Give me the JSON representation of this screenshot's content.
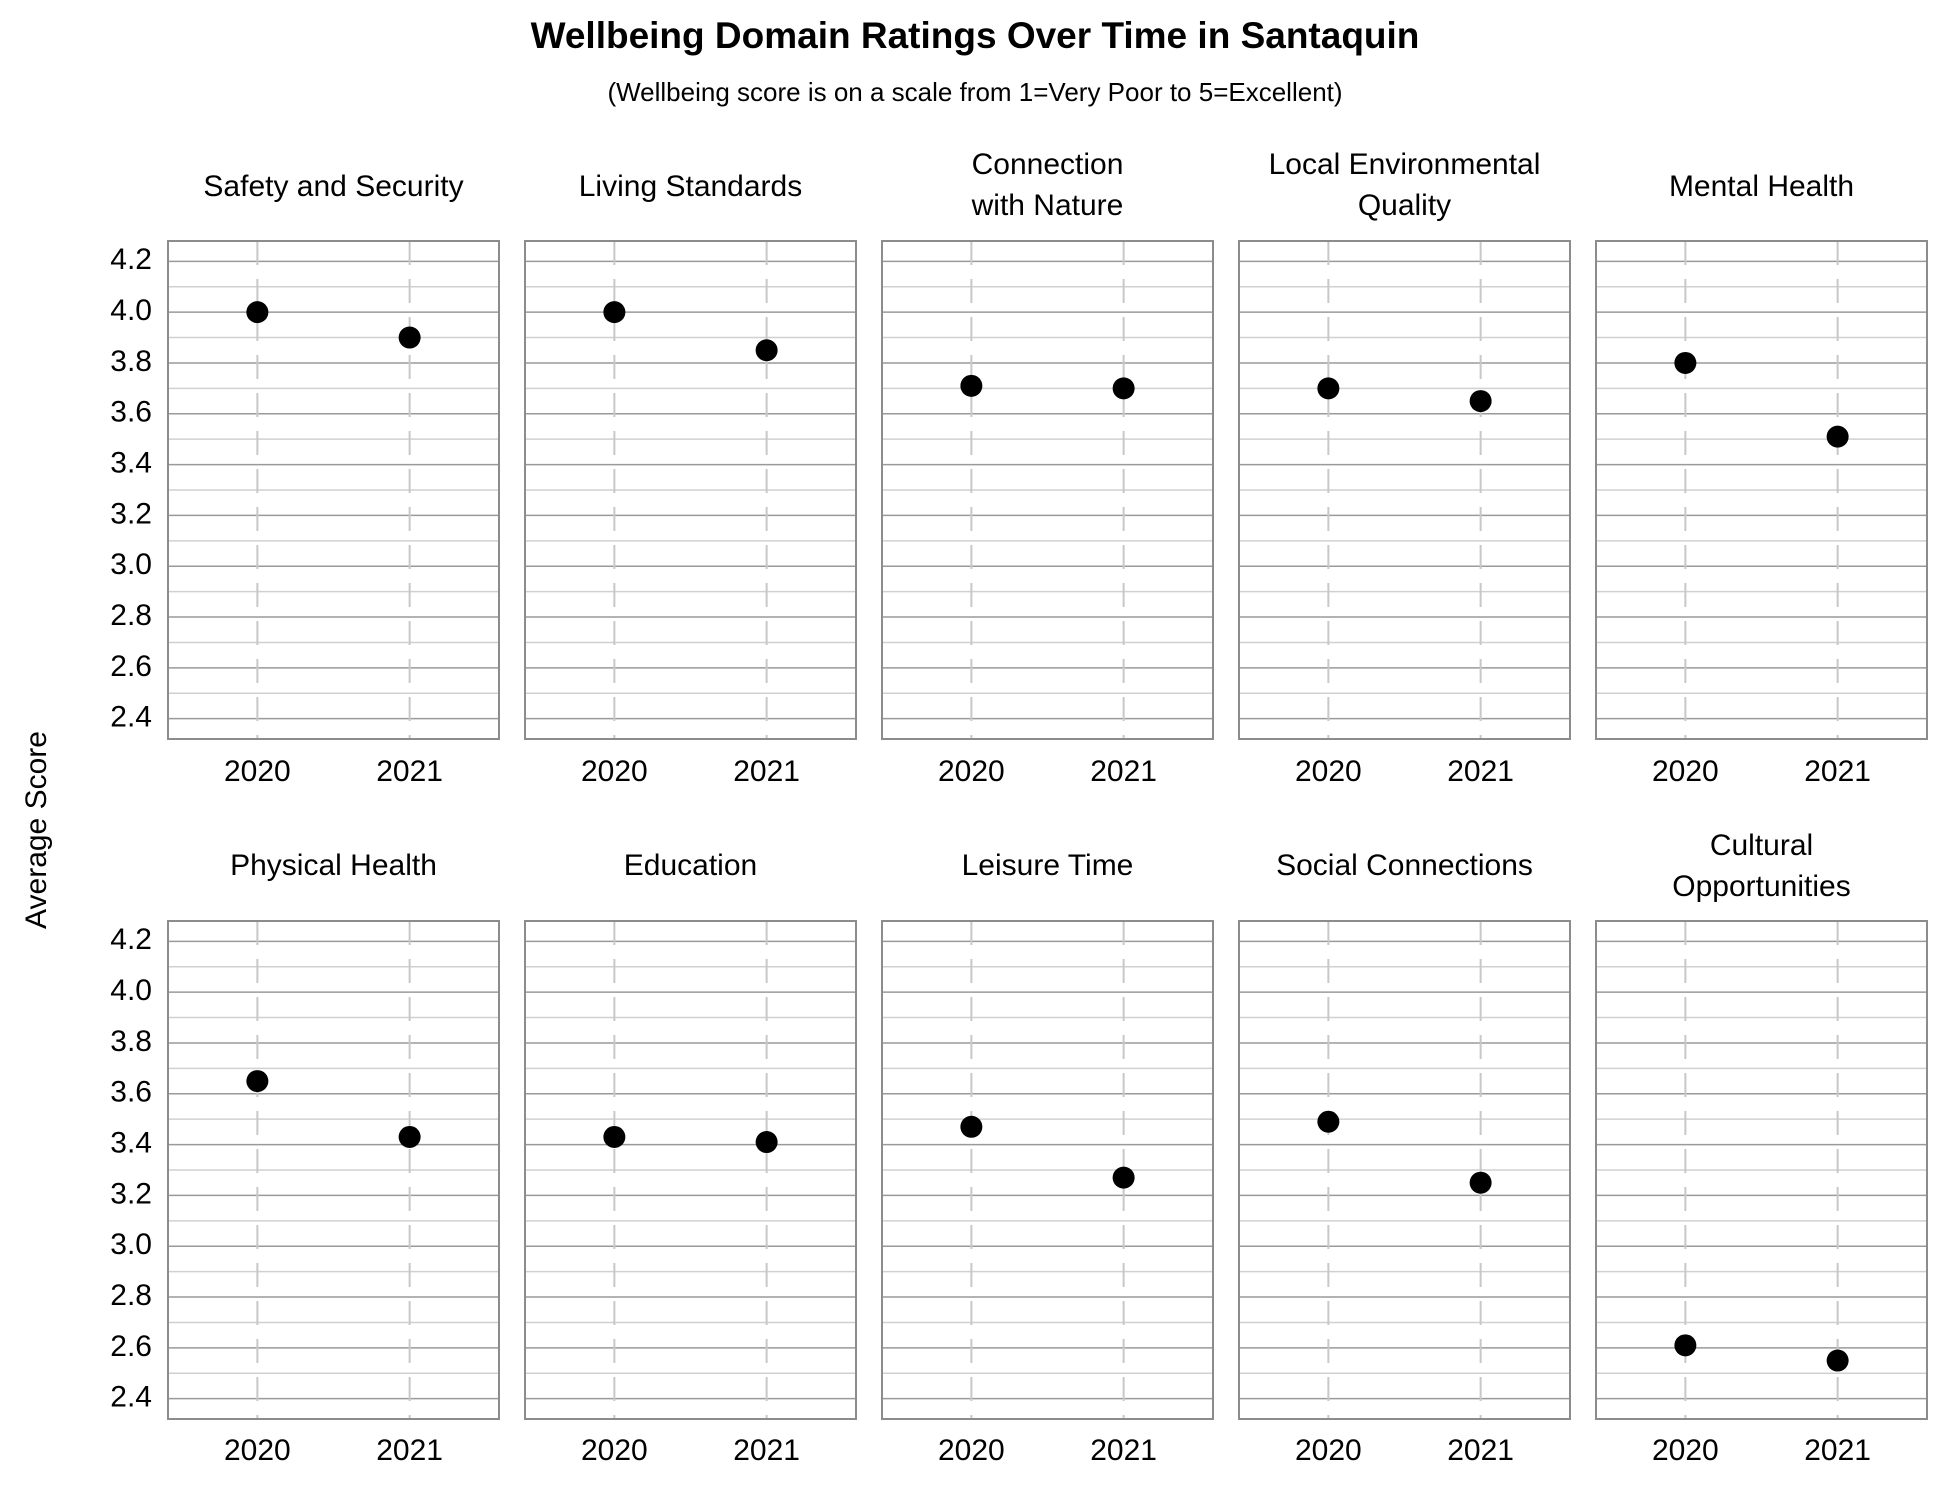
{
  "title": "Wellbeing Domain Ratings Over Time in Santaquin",
  "subtitle": "(Wellbeing score is on a scale from 1=Very Poor to 5=Excellent)",
  "ylabel": "Average Score",
  "chart_data": [
    {
      "type": "scatter",
      "title": [
        "Safety and Security"
      ],
      "categories": [
        "2020",
        "2021"
      ],
      "values": [
        4.0,
        3.9
      ],
      "color": "#000000",
      "ylim": [
        2.32,
        4.28
      ],
      "yticks": [
        2.4,
        2.6,
        2.8,
        {
          "value": 3,
          "label": "3.0"
        },
        3.2,
        3.4,
        3.6,
        3.8,
        {
          "value": 4,
          "label": "4.0"
        },
        4.2
      ],
      "minor_yticks": [
        2.5,
        2.7,
        2.9,
        3.1,
        3.3,
        3.5,
        3.7,
        3.9,
        4.1
      ],
      "grid": true
    },
    {
      "type": "scatter",
      "title": [
        "Living Standards"
      ],
      "categories": [
        "2020",
        "2021"
      ],
      "values": [
        4.0,
        3.85
      ],
      "color": "#000000",
      "ylim": [
        2.32,
        4.28
      ],
      "yticks": [
        2.4,
        2.6,
        2.8,
        {
          "value": 3,
          "label": "3.0"
        },
        3.2,
        3.4,
        3.6,
        3.8,
        {
          "value": 4,
          "label": "4.0"
        },
        4.2
      ],
      "minor_yticks": [
        2.5,
        2.7,
        2.9,
        3.1,
        3.3,
        3.5,
        3.7,
        3.9,
        4.1
      ],
      "grid": true
    },
    {
      "type": "scatter",
      "title": [
        "Connection",
        "with Nature"
      ],
      "categories": [
        "2020",
        "2021"
      ],
      "values": [
        3.71,
        3.7
      ],
      "color": "#000000",
      "ylim": [
        2.32,
        4.28
      ],
      "yticks": [
        2.4,
        2.6,
        2.8,
        {
          "value": 3,
          "label": "3.0"
        },
        3.2,
        3.4,
        3.6,
        3.8,
        {
          "value": 4,
          "label": "4.0"
        },
        4.2
      ],
      "minor_yticks": [
        2.5,
        2.7,
        2.9,
        3.1,
        3.3,
        3.5,
        3.7,
        3.9,
        4.1
      ],
      "grid": true
    },
    {
      "type": "scatter",
      "title": [
        "Local Environmental",
        "Quality"
      ],
      "categories": [
        "2020",
        "2021"
      ],
      "values": [
        3.7,
        3.65
      ],
      "color": "#000000",
      "ylim": [
        2.32,
        4.28
      ],
      "yticks": [
        2.4,
        2.6,
        2.8,
        {
          "value": 3,
          "label": "3.0"
        },
        3.2,
        3.4,
        3.6,
        3.8,
        {
          "value": 4,
          "label": "4.0"
        },
        4.2
      ],
      "minor_yticks": [
        2.5,
        2.7,
        2.9,
        3.1,
        3.3,
        3.5,
        3.7,
        3.9,
        4.1
      ],
      "grid": true
    },
    {
      "type": "scatter",
      "title": [
        "Mental Health"
      ],
      "categories": [
        "2020",
        "2021"
      ],
      "values": [
        3.8,
        3.51
      ],
      "color": "#000000",
      "ylim": [
        2.32,
        4.28
      ],
      "yticks": [
        2.4,
        2.6,
        2.8,
        {
          "value": 3,
          "label": "3.0"
        },
        3.2,
        3.4,
        3.6,
        3.8,
        {
          "value": 4,
          "label": "4.0"
        },
        4.2
      ],
      "minor_yticks": [
        2.5,
        2.7,
        2.9,
        3.1,
        3.3,
        3.5,
        3.7,
        3.9,
        4.1
      ],
      "grid": true
    },
    {
      "type": "scatter",
      "title": [
        "Physical Health"
      ],
      "categories": [
        "2020",
        "2021"
      ],
      "values": [
        3.65,
        3.43
      ],
      "color": "#000000",
      "ylim": [
        2.32,
        4.28
      ],
      "yticks": [
        2.4,
        2.6,
        2.8,
        {
          "value": 3,
          "label": "3.0"
        },
        3.2,
        3.4,
        3.6,
        3.8,
        {
          "value": 4,
          "label": "4.0"
        },
        4.2
      ],
      "minor_yticks": [
        2.5,
        2.7,
        2.9,
        3.1,
        3.3,
        3.5,
        3.7,
        3.9,
        4.1
      ],
      "grid": true
    },
    {
      "type": "scatter",
      "title": [
        "Education"
      ],
      "categories": [
        "2020",
        "2021"
      ],
      "values": [
        3.43,
        3.41
      ],
      "color": "#000000",
      "ylim": [
        2.32,
        4.28
      ],
      "yticks": [
        2.4,
        2.6,
        2.8,
        {
          "value": 3,
          "label": "3.0"
        },
        3.2,
        3.4,
        3.6,
        3.8,
        {
          "value": 4,
          "label": "4.0"
        },
        4.2
      ],
      "minor_yticks": [
        2.5,
        2.7,
        2.9,
        3.1,
        3.3,
        3.5,
        3.7,
        3.9,
        4.1
      ],
      "grid": true
    },
    {
      "type": "scatter",
      "title": [
        "Leisure Time"
      ],
      "categories": [
        "2020",
        "2021"
      ],
      "values": [
        3.47,
        3.27
      ],
      "color": "#000000",
      "ylim": [
        2.32,
        4.28
      ],
      "yticks": [
        2.4,
        2.6,
        2.8,
        {
          "value": 3,
          "label": "3.0"
        },
        3.2,
        3.4,
        3.6,
        3.8,
        {
          "value": 4,
          "label": "4.0"
        },
        4.2
      ],
      "minor_yticks": [
        2.5,
        2.7,
        2.9,
        3.1,
        3.3,
        3.5,
        3.7,
        3.9,
        4.1
      ],
      "grid": true
    },
    {
      "type": "scatter",
      "title": [
        "Social Connections"
      ],
      "categories": [
        "2020",
        "2021"
      ],
      "values": [
        3.49,
        3.25
      ],
      "color": "#000000",
      "ylim": [
        2.32,
        4.28
      ],
      "yticks": [
        2.4,
        2.6,
        2.8,
        {
          "value": 3,
          "label": "3.0"
        },
        3.2,
        3.4,
        3.6,
        3.8,
        {
          "value": 4,
          "label": "4.0"
        },
        4.2
      ],
      "minor_yticks": [
        2.5,
        2.7,
        2.9,
        3.1,
        3.3,
        3.5,
        3.7,
        3.9,
        4.1
      ],
      "grid": true
    },
    {
      "type": "scatter",
      "title": [
        "Cultural",
        "Opportunities"
      ],
      "categories": [
        "2020",
        "2021"
      ],
      "values": [
        2.61,
        2.55
      ],
      "color": "#000000",
      "ylim": [
        2.32,
        4.28
      ],
      "yticks": [
        2.4,
        2.6,
        2.8,
        {
          "value": 3,
          "label": "3.0"
        },
        3.2,
        3.4,
        3.6,
        3.8,
        {
          "value": 4,
          "label": "4.0"
        },
        4.2
      ],
      "minor_yticks": [
        2.5,
        2.7,
        2.9,
        3.1,
        3.3,
        3.5,
        3.7,
        3.9,
        4.1
      ],
      "grid": true
    }
  ]
}
